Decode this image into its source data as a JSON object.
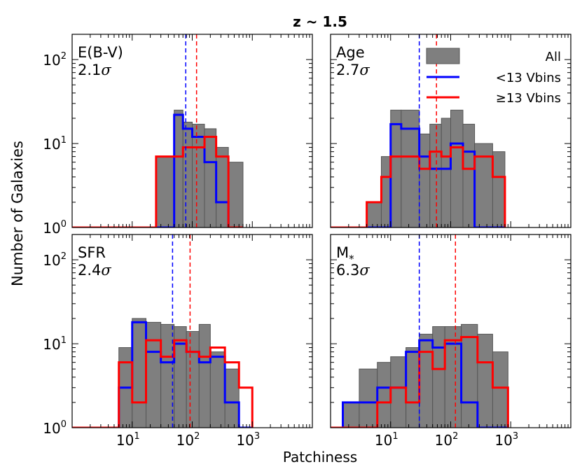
{
  "figure": {
    "title": "z ~ 1.5",
    "xlabel": "Patchiness",
    "ylabel": "Number of Galaxies",
    "xscale": "log",
    "yscale": "log",
    "xlim": [
      1,
      10000
    ],
    "ylim": [
      1,
      200
    ],
    "xticks": [
      {
        "base": "10",
        "exp": "1",
        "v": 10
      },
      {
        "base": "10",
        "exp": "2",
        "v": 100
      },
      {
        "base": "10",
        "exp": "3",
        "v": 1000
      }
    ],
    "yticks": [
      {
        "base": "10",
        "exp": "0",
        "v": 1
      },
      {
        "base": "10",
        "exp": "1",
        "v": 10
      },
      {
        "base": "10",
        "exp": "2",
        "v": 100
      }
    ],
    "legend": {
      "location": "top-right of Age panel",
      "entries": [
        "All",
        "<13 Vbins",
        "≥13 Vbins"
      ]
    }
  },
  "colors": {
    "all_fill": "#7f7f7f",
    "all_edge": "#555555",
    "low": "#0000ff",
    "high": "#ff0000"
  },
  "chart_data": [
    {
      "type": "histogram",
      "panel": "E(B-V)",
      "label": "E(B-V)",
      "sigma_value": "2.1",
      "sigma_symbol": "σ",
      "bins": [
        0.5,
        1,
        2,
        5,
        10,
        25,
        50,
        70,
        100,
        160,
        250,
        400,
        700
      ],
      "series": [
        {
          "name": "All",
          "values": [
            0,
            0,
            0,
            0,
            0,
            7,
            25,
            18,
            17,
            15,
            9,
            6
          ]
        },
        {
          "name": "<13 Vbins",
          "values": [
            0,
            0,
            0,
            0,
            0,
            0,
            22,
            15,
            12,
            6,
            2,
            0
          ]
        },
        {
          "name": "≥13 Vbins",
          "values": [
            1,
            1,
            1,
            1,
            1,
            7,
            7,
            9,
            9,
            12,
            7,
            1
          ]
        }
      ],
      "medians": {
        "<13 Vbins": 78,
        "≥13 Vbins": 118
      }
    },
    {
      "type": "histogram",
      "panel": "Age",
      "label": "Age",
      "sigma_value": "2.7",
      "sigma_symbol": "σ",
      "bins": [
        0.5,
        1,
        2,
        4,
        7,
        10,
        15,
        30,
        45,
        70,
        100,
        160,
        250,
        500,
        800
      ],
      "series": [
        {
          "name": "All",
          "values": [
            0,
            0,
            0,
            2,
            7,
            25,
            25,
            13,
            17,
            20,
            25,
            17,
            10,
            8
          ]
        },
        {
          "name": "<13 Vbins",
          "values": [
            0,
            0,
            0,
            0,
            1,
            17,
            15,
            7,
            5,
            5,
            10,
            8,
            1,
            0
          ]
        },
        {
          "name": "≥13 Vbins",
          "values": [
            1,
            1,
            1,
            2,
            4,
            7,
            7,
            5,
            8,
            7,
            9,
            5,
            7,
            4
          ]
        }
      ],
      "medians": {
        "<13 Vbins": 30,
        "≥13 Vbins": 58
      }
    },
    {
      "type": "histogram",
      "panel": "SFR",
      "label": "SFR",
      "sigma_value": "2.4",
      "sigma_symbol": "σ",
      "bins": [
        0.5,
        1,
        2,
        4,
        6,
        10,
        17,
        30,
        50,
        80,
        130,
        200,
        350,
        600,
        1000
      ],
      "series": [
        {
          "name": "All",
          "values": [
            0,
            0,
            0,
            0,
            9,
            20,
            18,
            17,
            16,
            14,
            17,
            8,
            5,
            0
          ]
        },
        {
          "name": "<13 Vbins",
          "values": [
            0,
            0,
            0,
            0,
            3,
            18,
            8,
            6,
            10,
            8,
            6,
            7,
            2,
            0
          ]
        },
        {
          "name": "≥13 Vbins",
          "values": [
            0,
            0,
            0,
            0,
            6,
            2,
            11,
            7,
            11,
            8,
            7,
            9,
            6,
            3
          ]
        }
      ],
      "medians": {
        "<13 Vbins": 47,
        "≥13 Vbins": 92
      }
    },
    {
      "type": "histogram",
      "panel": "M*",
      "label": "M",
      "label_sub": "*",
      "sigma_value": "6.3",
      "sigma_symbol": "σ",
      "bins": [
        0.5,
        1,
        1.6,
        3,
        6,
        10,
        18,
        30,
        50,
        80,
        150,
        280,
        500,
        900
      ],
      "series": [
        {
          "name": "All",
          "values": [
            0,
            0,
            2,
            5,
            6,
            7,
            9,
            13,
            16,
            16,
            17,
            13,
            8
          ]
        },
        {
          "name": "<13 Vbins",
          "values": [
            0,
            0,
            2,
            2,
            3,
            3,
            8,
            11,
            9,
            10,
            2,
            1,
            0
          ]
        },
        {
          "name": "≥13 Vbins",
          "values": [
            0,
            0,
            1,
            1,
            2,
            3,
            2,
            8,
            5,
            11,
            12,
            6,
            3
          ]
        }
      ],
      "medians": {
        "<13 Vbins": 30,
        "≥13 Vbins": 120
      }
    }
  ]
}
